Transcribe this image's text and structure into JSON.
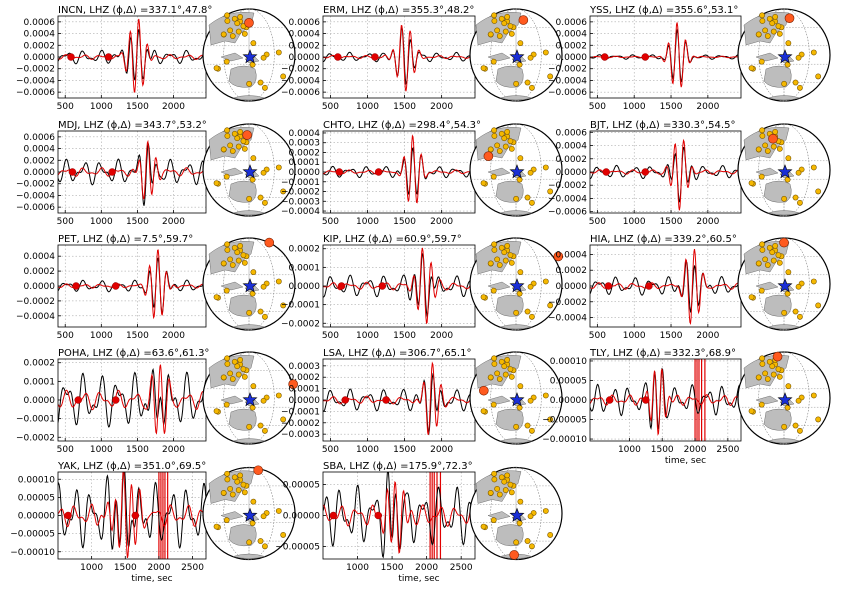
{
  "figure": {
    "x_axis_label": "time, sec"
  },
  "chart_data": [
    {
      "type": "line",
      "title": "INCN, LHZ (ϕ,Δ) =337.1°,47.8°",
      "station": "INCN",
      "azimuth": 337.1,
      "distance": 47.8,
      "xlim": [
        400,
        2450
      ],
      "ylim": [
        -0.0007,
        0.0007
      ],
      "xticks": [
        500,
        1000,
        1500,
        2000
      ],
      "yticks": [
        -0.0006,
        -0.0004,
        -0.0002,
        0.0,
        0.0002,
        0.0004,
        0.0006
      ],
      "ytick_labels": [
        "−0.0006",
        "−0.0004",
        "−0.0002",
        "0.0000",
        "0.0002",
        "0.0004",
        "0.0006"
      ],
      "show_xticklabels": true,
      "show_xlabel": false,
      "grid": true,
      "series": [
        {
          "role": "observed",
          "color": "#000000"
        },
        {
          "role": "synthetic",
          "color": "#e00000"
        }
      ],
      "window_start": 1300,
      "window_end": 1680,
      "sig_amp": 0.00065,
      "bg_amp": 0.00012,
      "red_dots": [
        580,
        1100
      ],
      "red_lines": [],
      "station_marker": [
        0.5,
        0.15
      ]
    },
    {
      "type": "line",
      "title": "ERM, LHZ (ϕ,Δ) =355.3°,48.2°",
      "station": "ERM",
      "azimuth": 355.3,
      "distance": 48.2,
      "xlim": [
        400,
        2450
      ],
      "ylim": [
        -0.0007,
        0.0007
      ],
      "xticks": [
        500,
        1000,
        1500,
        2000
      ],
      "yticks": [
        -0.0006,
        -0.0004,
        -0.0002,
        0.0,
        0.0002,
        0.0004,
        0.0006
      ],
      "ytick_labels": [
        "−0.0006",
        "−0.0004",
        "−0.0002",
        "0.0000",
        "0.0002",
        "0.0004",
        "0.0006"
      ],
      "show_xticklabels": true,
      "show_xlabel": false,
      "grid": true,
      "series": [
        {
          "role": "observed",
          "color": "#000000"
        },
        {
          "role": "synthetic",
          "color": "#e00000"
        }
      ],
      "window_start": 1320,
      "window_end": 1690,
      "sig_amp": 0.0006,
      "bg_amp": 8e-05,
      "red_dots": [
        600,
        1100
      ],
      "red_lines": [],
      "station_marker": [
        0.58,
        0.12
      ]
    },
    {
      "type": "line",
      "title": "YSS, LHZ (ϕ,Δ) =355.6°,53.1°",
      "station": "YSS",
      "azimuth": 355.6,
      "distance": 53.1,
      "xlim": [
        400,
        2450
      ],
      "ylim": [
        -0.0007,
        0.0007
      ],
      "xticks": [
        500,
        1000,
        1500,
        2000
      ],
      "yticks": [
        -0.0006,
        -0.0004,
        -0.0002,
        0.0,
        0.0002,
        0.0004,
        0.0006
      ],
      "ytick_labels": [
        "−0.0006",
        "−0.0004",
        "−0.0002",
        "0.0000",
        "0.0002",
        "0.0004",
        "0.0006"
      ],
      "show_xticklabels": true,
      "show_xlabel": false,
      "grid": true,
      "series": [
        {
          "role": "observed",
          "color": "#000000"
        },
        {
          "role": "synthetic",
          "color": "#e00000"
        }
      ],
      "window_start": 1420,
      "window_end": 1760,
      "sig_amp": 0.0006,
      "bg_amp": 4e-05,
      "red_dots": [
        600,
        1150
      ],
      "red_lines": [],
      "station_marker": [
        0.56,
        0.1
      ]
    },
    {
      "type": "line",
      "title": "MDJ, LHZ (ϕ,Δ) =343.7°,53.2°",
      "station": "MDJ",
      "azimuth": 343.7,
      "distance": 53.2,
      "xlim": [
        400,
        2450
      ],
      "ylim": [
        -0.0007,
        0.0007
      ],
      "xticks": [
        500,
        1000,
        1500,
        2000
      ],
      "yticks": [
        -0.0006,
        -0.0004,
        -0.0002,
        0.0,
        0.0002,
        0.0004,
        0.0006
      ],
      "ytick_labels": [
        "−0.0006",
        "−0.0004",
        "−0.0002",
        "0.0000",
        "0.0002",
        "0.0004",
        "0.0006"
      ],
      "show_xticklabels": true,
      "show_xlabel": false,
      "grid": true,
      "series": [
        {
          "role": "observed",
          "color": "#000000"
        },
        {
          "role": "synthetic",
          "color": "#e00000"
        }
      ],
      "window_start": 1480,
      "window_end": 1800,
      "sig_amp": 0.00055,
      "bg_amp": 0.00022,
      "red_dots": [
        600,
        1150
      ],
      "red_lines": [],
      "station_marker": [
        0.48,
        0.12
      ]
    },
    {
      "type": "line",
      "title": "CHTO, LHZ (ϕ,Δ) =298.4°,54.3°",
      "station": "CHTO",
      "azimuth": 298.4,
      "distance": 54.3,
      "xlim": [
        400,
        2450
      ],
      "ylim": [
        -0.00042,
        0.00042
      ],
      "xticks": [
        500,
        1000,
        1500,
        2000
      ],
      "yticks": [
        -0.0004,
        -0.0003,
        -0.0002,
        -0.0001,
        0.0,
        0.0001,
        0.0002,
        0.0003,
        0.0004
      ],
      "ytick_labels": [
        "−0.0004",
        "−0.0003",
        "−0.0002",
        "−0.0001",
        "0.0000",
        "0.0001",
        "0.0002",
        "0.0003",
        "0.0004"
      ],
      "show_xticklabels": true,
      "show_xlabel": false,
      "grid": true,
      "series": [
        {
          "role": "observed",
          "color": "#000000"
        },
        {
          "role": "synthetic",
          "color": "#e00000"
        }
      ],
      "window_start": 1450,
      "window_end": 1780,
      "sig_amp": 0.00038,
      "bg_amp": 6e-05,
      "red_dots": [
        620,
        1150
      ],
      "red_lines": [],
      "station_marker": [
        0.2,
        0.35
      ]
    },
    {
      "type": "line",
      "title": "BJT, LHZ (ϕ,Δ) =330.3°,54.5°",
      "station": "BJT",
      "azimuth": 330.3,
      "distance": 54.5,
      "xlim": [
        400,
        2450
      ],
      "ylim": [
        -0.00062,
        0.00062
      ],
      "xticks": [
        500,
        1000,
        1500,
        2000
      ],
      "yticks": [
        -0.0006,
        -0.0004,
        -0.0002,
        0.0,
        0.0002,
        0.0004,
        0.0006
      ],
      "ytick_labels": [
        "−0.0006",
        "−0.0004",
        "−0.0002",
        "0.0000",
        "0.0002",
        "0.0004",
        "0.0006"
      ],
      "show_xticklabels": true,
      "show_xlabel": false,
      "grid": true,
      "series": [
        {
          "role": "observed",
          "color": "#000000"
        },
        {
          "role": "synthetic",
          "color": "#e00000"
        }
      ],
      "window_start": 1450,
      "window_end": 1790,
      "sig_amp": 0.00055,
      "bg_amp": 0.0001,
      "red_dots": [
        620,
        1150
      ],
      "red_lines": [],
      "station_marker": [
        0.38,
        0.16
      ]
    },
    {
      "type": "line",
      "title": "PET, LHZ (ϕ,Δ) =7.5°,59.7°",
      "station": "PET",
      "azimuth": 7.5,
      "distance": 59.7,
      "xlim": [
        400,
        2450
      ],
      "ylim": [
        -0.00055,
        0.00055
      ],
      "xticks": [
        500,
        1000,
        1500,
        2000
      ],
      "yticks": [
        -0.0004,
        -0.0002,
        0.0,
        0.0002,
        0.0004
      ],
      "ytick_labels": [
        "−0.0004",
        "−0.0002",
        "0.0000",
        "0.0002",
        "0.0004"
      ],
      "show_xticklabels": true,
      "show_xlabel": false,
      "grid": true,
      "series": [
        {
          "role": "observed",
          "color": "#000000"
        },
        {
          "role": "synthetic",
          "color": "#e00000"
        }
      ],
      "window_start": 1600,
      "window_end": 1950,
      "sig_amp": 0.0005,
      "bg_amp": 8e-05,
      "red_dots": [
        650,
        1200
      ],
      "red_lines": [],
      "station_marker": [
        0.72,
        0.05
      ]
    },
    {
      "type": "line",
      "title": "KIP, LHZ (ϕ,Δ) =60.9°,59.7°",
      "station": "KIP",
      "azimuth": 60.9,
      "distance": 59.7,
      "xlim": [
        400,
        2450
      ],
      "ylim": [
        -0.00022,
        0.00022
      ],
      "xticks": [
        500,
        1000,
        1500,
        2000
      ],
      "yticks": [
        -0.0002,
        -0.0001,
        0.0,
        0.0001,
        0.0002
      ],
      "ytick_labels": [
        "−0.0002",
        "−0.0001",
        "0.0000",
        "0.0001",
        "0.0002"
      ],
      "show_xticklabels": true,
      "show_xlabel": false,
      "grid": true,
      "series": [
        {
          "role": "observed",
          "color": "#000000"
        },
        {
          "role": "synthetic",
          "color": "#e00000"
        }
      ],
      "window_start": 1580,
      "window_end": 1950,
      "sig_amp": 0.0002,
      "bg_amp": 6e-05,
      "red_dots": [
        650,
        1200
      ],
      "red_lines": [],
      "station_marker": [
        0.96,
        0.2
      ]
    },
    {
      "type": "line",
      "title": "HIA, LHZ (ϕ,Δ) =339.2°,60.5°",
      "station": "HIA",
      "azimuth": 339.2,
      "distance": 60.5,
      "xlim": [
        400,
        2450
      ],
      "ylim": [
        -0.00052,
        0.00052
      ],
      "xticks": [
        500,
        1000,
        1500,
        2000
      ],
      "yticks": [
        -0.0004,
        -0.0002,
        0.0,
        0.0002,
        0.0004
      ],
      "ytick_labels": [
        "−0.0004",
        "−0.0002",
        "0.0000",
        "0.0002",
        "0.0004"
      ],
      "show_xticklabels": true,
      "show_xlabel": false,
      "grid": true,
      "series": [
        {
          "role": "observed",
          "color": "#000000"
        },
        {
          "role": "synthetic",
          "color": "#e00000"
        }
      ],
      "window_start": 1620,
      "window_end": 1960,
      "sig_amp": 0.0005,
      "bg_amp": 0.00012,
      "red_dots": [
        650,
        1200
      ],
      "red_lines": [],
      "station_marker": [
        0.5,
        0.05
      ]
    },
    {
      "type": "line",
      "title": "POHA, LHZ (ϕ,Δ) =63.6°,61.3°",
      "station": "POHA",
      "azimuth": 63.6,
      "distance": 61.3,
      "xlim": [
        400,
        2450
      ],
      "ylim": [
        -0.00022,
        0.00022
      ],
      "xticks": [
        500,
        1000,
        1500,
        2000
      ],
      "yticks": [
        -0.0002,
        -0.0001,
        0.0,
        0.0001,
        0.0002
      ],
      "ytick_labels": [
        "−0.0002",
        "−0.0001",
        "0.0000",
        "0.0001",
        "0.0002"
      ],
      "show_xticklabels": true,
      "show_xlabel": false,
      "grid": true,
      "series": [
        {
          "role": "observed",
          "color": "#000000"
        },
        {
          "role": "synthetic",
          "color": "#e00000"
        }
      ],
      "window_start": 1640,
      "window_end": 1980,
      "sig_amp": 0.0002,
      "bg_amp": 0.00015,
      "red_dots": [
        680,
        1200
      ],
      "red_lines": [],
      "station_marker": [
        0.98,
        0.35
      ]
    },
    {
      "type": "line",
      "title": "LSA, LHZ (ϕ,Δ) =306.7°,65.1°",
      "station": "LSA",
      "azimuth": 306.7,
      "distance": 65.1,
      "xlim": [
        400,
        2450
      ],
      "ylim": [
        -0.00036,
        0.00036
      ],
      "xticks": [
        500,
        1000,
        1500,
        2000
      ],
      "yticks": [
        -0.0003,
        -0.0002,
        -0.0001,
        0.0,
        0.0001,
        0.0002,
        0.0003
      ],
      "ytick_labels": [
        "−0.0003",
        "−0.0002",
        "−0.0001",
        "0.0000",
        "0.0001",
        "0.0002",
        "0.0003"
      ],
      "show_xticklabels": true,
      "show_xlabel": false,
      "grid": true,
      "series": [
        {
          "role": "observed",
          "color": "#000000"
        },
        {
          "role": "synthetic",
          "color": "#e00000"
        }
      ],
      "window_start": 1700,
      "window_end": 2030,
      "sig_amp": 0.00033,
      "bg_amp": 0.0001,
      "red_dots": [
        700,
        1250
      ],
      "red_lines": [],
      "station_marker": [
        0.15,
        0.42
      ]
    },
    {
      "type": "line",
      "title": "TLY, LHZ (ϕ,Δ) =332.3°,68.9°",
      "station": "TLY",
      "azimuth": 332.3,
      "distance": 68.9,
      "xlim": [
        400,
        2700
      ],
      "ylim": [
        -0.000105,
        0.000105
      ],
      "xticks": [
        1000,
        1500,
        2000,
        2500
      ],
      "yticks": [
        -0.0001,
        -5e-05,
        0.0,
        5e-05,
        0.0001
      ],
      "ytick_labels": [
        "−0.00010",
        "−0.00005",
        "0.00000",
        "0.00005",
        "0.00010"
      ],
      "show_xticklabels": true,
      "show_xlabel": true,
      "grid": true,
      "series": [
        {
          "role": "observed",
          "color": "#000000"
        },
        {
          "role": "synthetic",
          "color": "#e00000"
        }
      ],
      "window_start": 1260,
      "window_end": 1600,
      "sig_amp": 0.0001,
      "bg_amp": 4e-05,
      "red_dots": [
        700,
        1250
      ],
      "red_lines": [
        2000,
        2030,
        2060,
        2100,
        2150
      ],
      "station_marker": [
        0.43,
        0.05
      ]
    },
    {
      "type": "line",
      "title": "YAK, LHZ (ϕ,Δ) =351.0°,69.5°",
      "station": "YAK",
      "azimuth": 351.0,
      "distance": 69.5,
      "xlim": [
        500,
        2700
      ],
      "ylim": [
        -0.00012,
        0.00012
      ],
      "xticks": [
        1000,
        1500,
        2000,
        2500
      ],
      "yticks": [
        -0.0001,
        -5e-05,
        0.0,
        5e-05,
        0.0001
      ],
      "ytick_labels": [
        "−0.00010",
        "−0.00005",
        "0.00000",
        "0.00005",
        "0.00010"
      ],
      "show_xticklabels": true,
      "show_xlabel": true,
      "grid": true,
      "series": [
        {
          "role": "observed",
          "color": "#000000"
        },
        {
          "role": "synthetic",
          "color": "#e00000"
        }
      ],
      "window_start": 1200,
      "window_end": 1800,
      "sig_amp": 0.00011,
      "bg_amp": 9e-05,
      "red_dots": [
        650,
        1650
      ],
      "red_lines": [
        2000,
        2030,
        2060,
        2090,
        2130
      ],
      "station_marker": [
        0.6,
        0.03
      ]
    },
    {
      "type": "line",
      "title": "SBA, LHZ (ϕ,Δ) =175.9°,72.3°",
      "station": "SBA",
      "azimuth": 175.9,
      "distance": 72.3,
      "xlim": [
        500,
        2700
      ],
      "ylim": [
        -7e-05,
        7e-05
      ],
      "xticks": [
        1000,
        1500,
        2000,
        2500
      ],
      "yticks": [
        -5e-05,
        0.0,
        5e-05
      ],
      "ytick_labels": [
        "−0.00005",
        "0.00000",
        "0.00005"
      ],
      "show_xticklabels": true,
      "show_xlabel": true,
      "grid": true,
      "series": [
        {
          "role": "observed",
          "color": "#000000"
        },
        {
          "role": "synthetic",
          "color": "#e00000"
        }
      ],
      "window_start": 1300,
      "window_end": 1750,
      "sig_amp": 6e-05,
      "bg_amp": 5e-05,
      "red_dots": [
        650,
        1300
      ],
      "red_lines": [
        2050,
        2080,
        2110,
        2150,
        2200
      ],
      "station_marker": [
        0.48,
        0.95
      ]
    }
  ]
}
